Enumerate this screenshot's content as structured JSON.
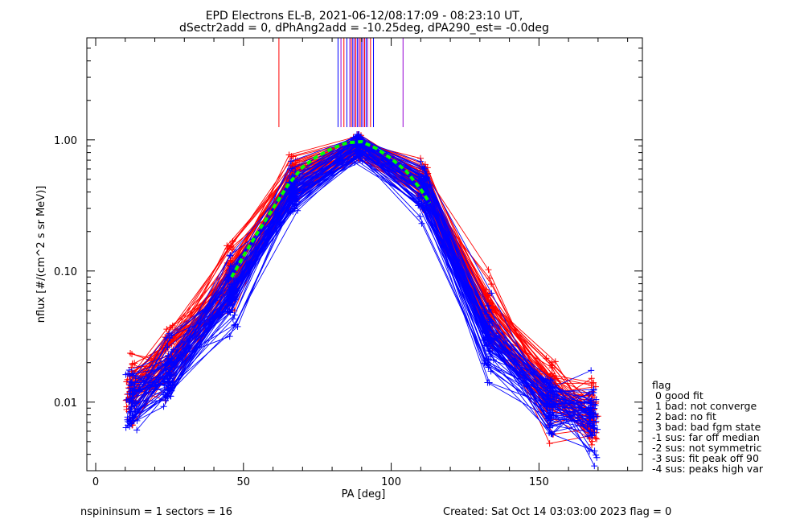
{
  "chart_data": {
    "type": "line",
    "title_line1": "EPD Electrons EL-B, 2021-06-12/08:17:09 - 08:23:10 UT,",
    "title_line2": "dSectr2add = 0, dPhAng2add = -10.25deg, dPA290_est=  -0.0deg",
    "xlabel": "PA [deg]",
    "ylabel": "nflux [#/(cm^2 s sr MeV)]",
    "xlim": [
      -3,
      185
    ],
    "ylim": [
      0.003,
      6
    ],
    "yscale": "log",
    "x_ticks": [
      0,
      50,
      100,
      150
    ],
    "x_tick_labels": [
      "0",
      "50",
      "100",
      "150"
    ],
    "y_ticks": [
      0.01,
      0.1,
      1.0
    ],
    "y_tick_labels": [
      "0.01",
      "0.10",
      "1.00"
    ],
    "colors": {
      "red": "#ff0000",
      "blue": "#0000ff",
      "purple": "#9400d3",
      "fit": "#00ff00"
    },
    "fit_curve": {
      "name": "fit",
      "x": [
        46,
        50,
        55,
        60,
        65,
        70,
        75,
        80,
        85,
        90,
        95,
        100,
        105,
        110,
        113
      ],
      "y": [
        0.09,
        0.13,
        0.2,
        0.3,
        0.45,
        0.62,
        0.75,
        0.86,
        0.95,
        0.97,
        0.86,
        0.72,
        0.58,
        0.42,
        0.33
      ]
    },
    "series_summary": {
      "pa_sectors": [
        12,
        25,
        46,
        67,
        89,
        111,
        133,
        154,
        168
      ],
      "red_median": [
        0.012,
        0.022,
        0.09,
        0.5,
        0.9,
        0.45,
        0.045,
        0.012,
        0.008
      ],
      "blue_median": [
        0.01,
        0.017,
        0.07,
        0.4,
        0.88,
        0.4,
        0.03,
        0.01,
        0.008
      ]
    },
    "vertical_markers": {
      "x": [
        62,
        82,
        83,
        84,
        85,
        86,
        86.5,
        87,
        87.5,
        88,
        88.5,
        89,
        89.5,
        90,
        90.5,
        91,
        91.5,
        92,
        93,
        94,
        104
      ],
      "y_bottom": 1.25
    }
  },
  "footer": {
    "left": "nspininsum =  1  sectors = 16",
    "right": "Created: Sat Oct 14 03:03:00 2023   flag = 0"
  },
  "legend": {
    "title": "flag",
    "items": [
      " 0 good fit",
      " 1 bad: not converge",
      " 2 bad: no fit",
      " 3 bad: bad fgm state",
      "-1 sus: far off median",
      "-2 sus: not symmetric",
      "-3 sus: fit peak off 90",
      "-4 sus: peaks high var"
    ]
  }
}
